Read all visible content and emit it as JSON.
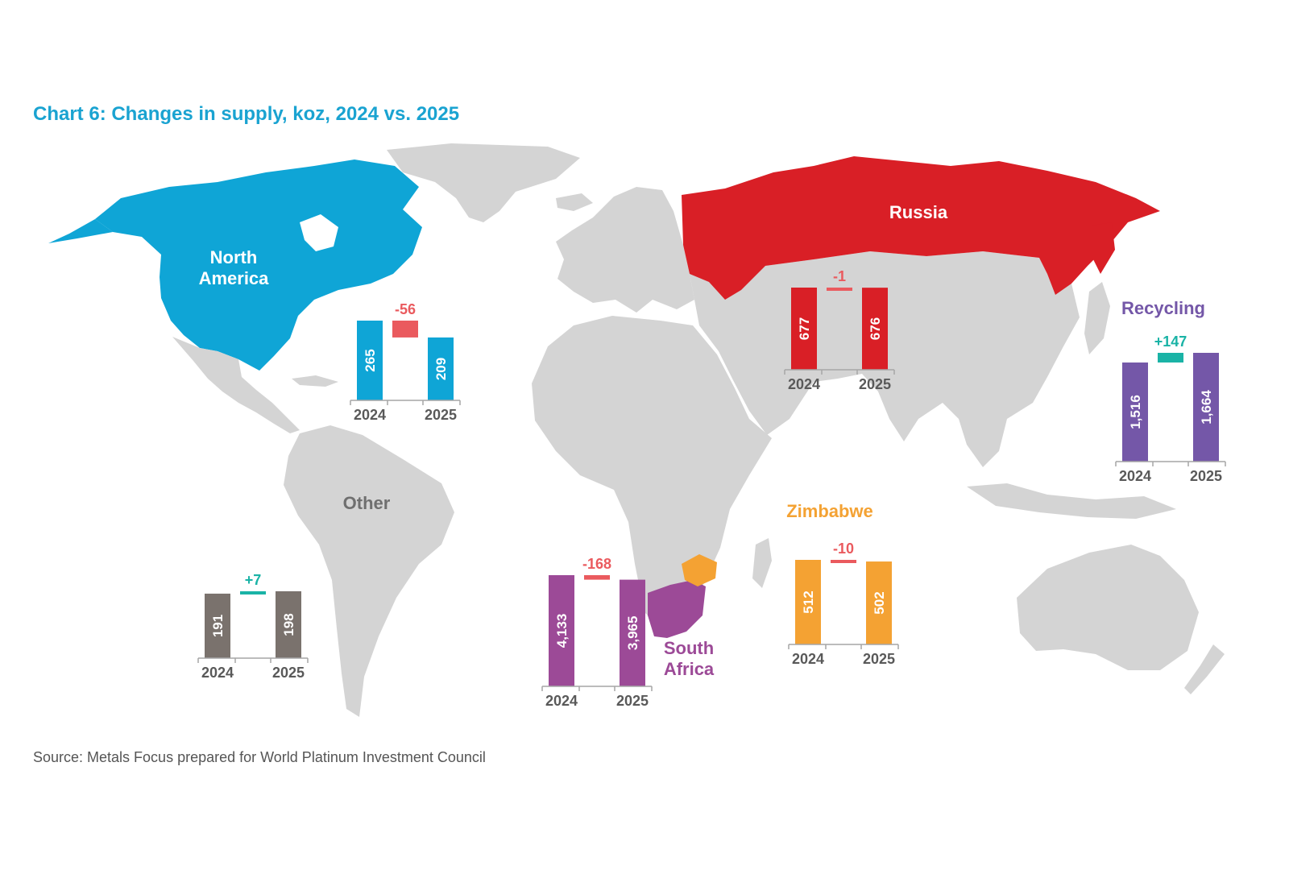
{
  "title": "Chart 6: Changes in supply, koz, 2024 vs. 2025",
  "source": "Source: Metals Focus prepared for World Platinum Investment Council",
  "colors": {
    "land": "#d4d4d4",
    "north_america": "#0fa5d6",
    "russia": "#d91f26",
    "south_africa": "#9c4a97",
    "zimbabwe": "#f4a233",
    "recycling": "#7457a8",
    "other": "#7a726d",
    "decrease": "#ea5a5e",
    "increase": "#1ab3a6"
  },
  "chart_data": {
    "type": "bar",
    "subtype": "waterfall-on-map",
    "unit": "koz",
    "categories": [
      "2024",
      "2025"
    ],
    "regions": [
      {
        "key": "north_america",
        "name": "North America",
        "v2024": 265,
        "v2025": 209,
        "label2024": "265",
        "label2025": "209",
        "change": -56,
        "change_label": "-56"
      },
      {
        "key": "russia",
        "name": "Russia",
        "v2024": 677,
        "v2025": 676,
        "label2024": "677",
        "label2025": "676",
        "change": -1,
        "change_label": "-1"
      },
      {
        "key": "recycling",
        "name": "Recycling",
        "v2024": 1516,
        "v2025": 1664,
        "label2024": "1,516",
        "label2025": "1,664",
        "change": 147,
        "change_label": "+147"
      },
      {
        "key": "other",
        "name": "Other",
        "v2024": 191,
        "v2025": 198,
        "label2024": "191",
        "label2025": "198",
        "change": 7,
        "change_label": "+7"
      },
      {
        "key": "south_africa",
        "name": "South Africa",
        "v2024": 4133,
        "v2025": 3965,
        "label2024": "4,133",
        "label2025": "3,965",
        "change": -168,
        "change_label": "-168"
      },
      {
        "key": "zimbabwe",
        "name": "Zimbabwe",
        "v2024": 512,
        "v2025": 502,
        "label2024": "512",
        "label2025": "502",
        "change": -10,
        "change_label": "-10"
      }
    ]
  }
}
